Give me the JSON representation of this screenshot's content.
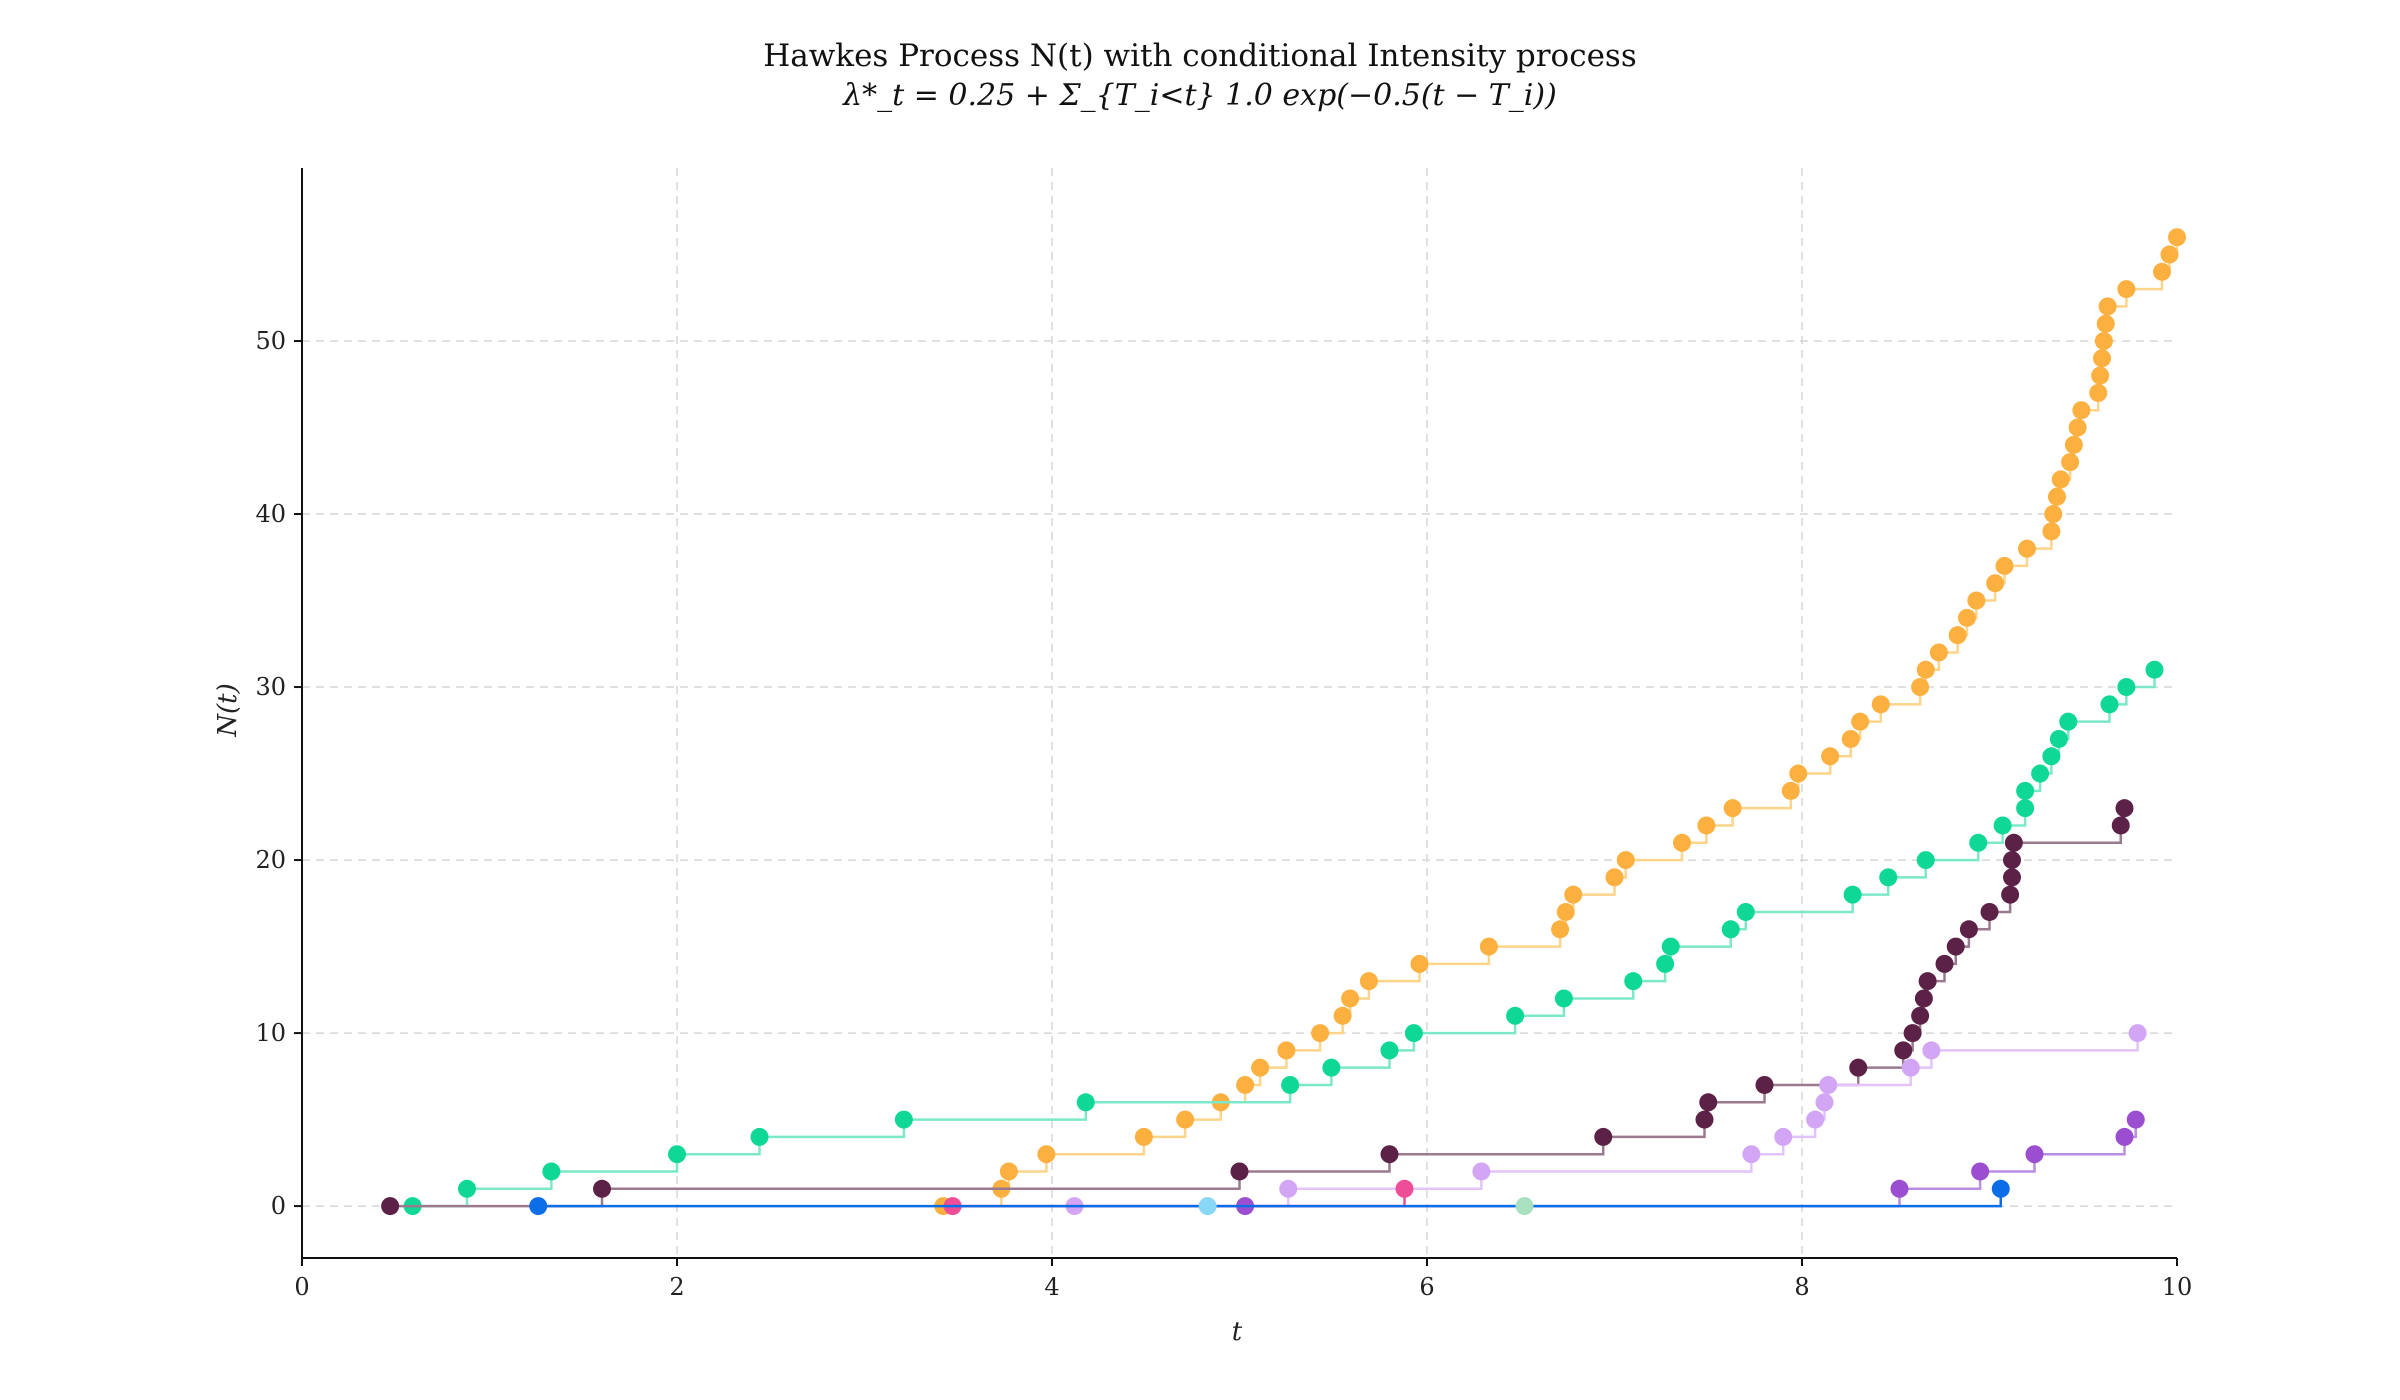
{
  "chart_data": {
    "type": "line",
    "title": "Hawkes Process N(t) with conditional Intensity process",
    "subtitle": "λ*_t = 0.25 + Σ_{T_i<t} 1.0 exp(−0.5(t − T_i))",
    "xlabel": "t",
    "ylabel": "N(t)",
    "xlim": [
      0,
      10
    ],
    "ylim": [
      -3,
      60
    ],
    "xticks": [
      0,
      2,
      4,
      6,
      8,
      10
    ],
    "yticks": [
      0,
      10,
      20,
      30,
      40,
      50
    ],
    "grid": true,
    "step": "post",
    "series": [
      {
        "color": "#fbb040",
        "line_color": "#fcd48a",
        "events": [
          3.42,
          3.73,
          3.77,
          3.97,
          4.49,
          4.71,
          4.9,
          5.03,
          5.11,
          5.25,
          5.43,
          5.55,
          5.59,
          5.69,
          5.96,
          6.33,
          6.71,
          6.74,
          6.78,
          7.0,
          7.06,
          7.36,
          7.49,
          7.63,
          7.94,
          7.98,
          8.15,
          8.26,
          8.31,
          8.42,
          8.63,
          8.66,
          8.73,
          8.83,
          8.88,
          8.93,
          9.03,
          9.08,
          9.2,
          9.33,
          9.34,
          9.36,
          9.38,
          9.43,
          9.45,
          9.47,
          9.49,
          9.58,
          9.59,
          9.6,
          9.61,
          9.62,
          9.63,
          9.73,
          9.92,
          9.96,
          10.0
        ]
      },
      {
        "color": "#0fd896",
        "line_color": "#7de8c8",
        "events": [
          0.59,
          0.88,
          1.33,
          2.0,
          2.44,
          3.21,
          4.18,
          5.27,
          5.49,
          5.8,
          5.93,
          6.47,
          6.73,
          7.1,
          7.27,
          7.3,
          7.62,
          7.7,
          8.27,
          8.46,
          8.66,
          8.94,
          9.07,
          9.19,
          9.19,
          9.27,
          9.33,
          9.37,
          9.42,
          9.64,
          9.73,
          9.88
        ]
      },
      {
        "color": "#5c2146",
        "line_color": "#9a7a8e",
        "events": [
          0.47,
          1.6,
          5.0,
          5.8,
          6.94,
          7.48,
          7.5,
          7.8,
          8.3,
          8.54,
          8.59,
          8.63,
          8.65,
          8.67,
          8.76,
          8.82,
          8.89,
          9.0,
          9.11,
          9.12,
          9.12,
          9.13,
          9.7,
          9.72
        ]
      },
      {
        "color": "#d3a6f5",
        "line_color": "#e3c4fa",
        "events": [
          4.12,
          5.26,
          6.29,
          7.73,
          7.9,
          8.07,
          8.12,
          8.14,
          8.58,
          8.69,
          9.79
        ]
      },
      {
        "color": "#9b4fd0",
        "line_color": "#b98de0",
        "events": [
          5.03,
          8.52,
          8.95,
          9.24,
          9.72,
          9.78
        ]
      },
      {
        "color": "#ee4d97",
        "line_color": "#ee4d97",
        "events": [
          3.47,
          5.88
        ]
      },
      {
        "color": "#0c6ee6",
        "line_color": "#0c6ee6",
        "events": [
          1.26,
          9.06
        ]
      },
      {
        "color": "#8ad8f7",
        "line_color": "#8ad8f7",
        "events": [
          4.83
        ]
      },
      {
        "color": "#a8e0c0",
        "line_color": "#a8e0c0",
        "events": [
          6.52
        ]
      }
    ]
  }
}
